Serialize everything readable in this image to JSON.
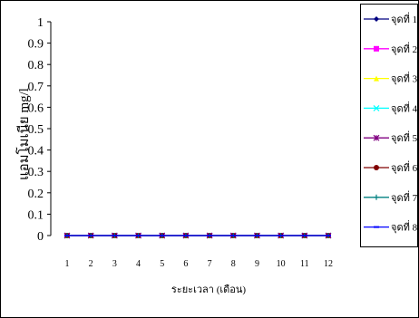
{
  "chart_data": {
    "type": "line",
    "title": "",
    "xlabel": "ระยะเวลา (เดือน)",
    "ylabel": "แอมโมเนีย mg/l",
    "categories": [
      "1",
      "2",
      "3",
      "4",
      "5",
      "6",
      "7",
      "8",
      "9",
      "10",
      "11",
      "12"
    ],
    "yticks": [
      "0",
      "0.1",
      "0.2",
      "0.3",
      "0.4",
      "0.5",
      "0.6",
      "0.7",
      "0.8",
      "0.9",
      "1"
    ],
    "ylim": [
      0,
      1
    ],
    "grid": false,
    "legend_position": "right",
    "series": [
      {
        "name": "จุดที่ 1",
        "color": "#000080",
        "marker": "diamond",
        "values": [
          0,
          0,
          0,
          0,
          0,
          0,
          0,
          0,
          0,
          0,
          0,
          0
        ]
      },
      {
        "name": "จุดที่ 2",
        "color": "#ff00ff",
        "marker": "square",
        "values": [
          0,
          0,
          0,
          0,
          0,
          0,
          0,
          0,
          0,
          0,
          0,
          0
        ]
      },
      {
        "name": "จุดที่ 3",
        "color": "#ffff00",
        "marker": "triangle",
        "values": [
          0,
          0,
          0,
          0,
          0,
          0,
          0,
          0,
          0,
          0,
          0,
          0
        ]
      },
      {
        "name": "จุดที่ 4",
        "color": "#00ffff",
        "marker": "x",
        "values": [
          0,
          0,
          0,
          0,
          0,
          0,
          0,
          0,
          0,
          0,
          0,
          0
        ]
      },
      {
        "name": "จุดที่ 5",
        "color": "#800080",
        "marker": "star",
        "values": [
          0,
          0,
          0,
          0,
          0,
          0,
          0,
          0,
          0,
          0,
          0,
          0
        ]
      },
      {
        "name": "จุดที่ 6",
        "color": "#800000",
        "marker": "circle",
        "values": [
          0,
          0,
          0,
          0,
          0,
          0,
          0,
          0,
          0,
          0,
          0,
          0
        ]
      },
      {
        "name": "จุดที่ 7",
        "color": "#008080",
        "marker": "plus",
        "values": [
          0,
          0,
          0,
          0,
          0,
          0,
          0,
          0,
          0,
          0,
          0,
          0
        ]
      },
      {
        "name": "จุดที่ 8",
        "color": "#0000ff",
        "marker": "dash",
        "values": [
          0,
          0,
          0,
          0,
          0,
          0,
          0,
          0,
          0,
          0,
          0,
          0
        ]
      }
    ]
  }
}
